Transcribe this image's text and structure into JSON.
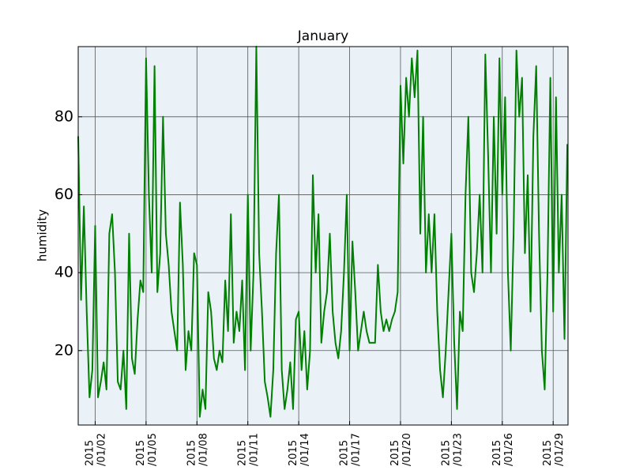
{
  "chart_data": {
    "type": "line",
    "title": "January",
    "ylabel": "humidity",
    "color": "#008000",
    "background": "#eaf2f8",
    "grid": true,
    "x": [
      "2015-01-01 00:00",
      "2015-01-01 04:00",
      "2015-01-01 08:00",
      "2015-01-01 12:00",
      "2015-01-01 16:00",
      "2015-01-01 20:00",
      "2015-01-02 00:00",
      "2015-01-02 04:00",
      "2015-01-02 08:00",
      "2015-01-02 12:00",
      "2015-01-02 16:00",
      "2015-01-02 20:00",
      "2015-01-03 00:00",
      "2015-01-03 04:00",
      "2015-01-03 08:00",
      "2015-01-03 12:00",
      "2015-01-03 16:00",
      "2015-01-03 20:00",
      "2015-01-04 00:00",
      "2015-01-04 04:00",
      "2015-01-04 08:00",
      "2015-01-04 12:00",
      "2015-01-04 16:00",
      "2015-01-04 20:00",
      "2015-01-05 00:00",
      "2015-01-05 04:00",
      "2015-01-05 08:00",
      "2015-01-05 12:00",
      "2015-01-05 16:00",
      "2015-01-05 20:00",
      "2015-01-06 00:00",
      "2015-01-06 04:00",
      "2015-01-06 08:00",
      "2015-01-06 12:00",
      "2015-01-06 16:00",
      "2015-01-06 20:00",
      "2015-01-07 00:00",
      "2015-01-07 04:00",
      "2015-01-07 08:00",
      "2015-01-07 12:00",
      "2015-01-07 16:00",
      "2015-01-07 20:00",
      "2015-01-08 00:00",
      "2015-01-08 04:00",
      "2015-01-08 08:00",
      "2015-01-08 12:00",
      "2015-01-08 16:00",
      "2015-01-08 20:00",
      "2015-01-09 00:00",
      "2015-01-09 04:00",
      "2015-01-09 08:00",
      "2015-01-09 12:00",
      "2015-01-09 16:00",
      "2015-01-09 20:00",
      "2015-01-10 00:00",
      "2015-01-10 04:00",
      "2015-01-10 08:00",
      "2015-01-10 12:00",
      "2015-01-10 16:00",
      "2015-01-10 20:00",
      "2015-01-11 00:00",
      "2015-01-11 04:00",
      "2015-01-11 08:00",
      "2015-01-11 12:00",
      "2015-01-11 16:00",
      "2015-01-11 20:00",
      "2015-01-12 00:00",
      "2015-01-12 04:00",
      "2015-01-12 08:00",
      "2015-01-12 12:00",
      "2015-01-12 16:00",
      "2015-01-12 20:00",
      "2015-01-13 00:00",
      "2015-01-13 04:00",
      "2015-01-13 08:00",
      "2015-01-13 12:00",
      "2015-01-13 16:00",
      "2015-01-13 20:00",
      "2015-01-14 00:00",
      "2015-01-14 04:00",
      "2015-01-14 08:00",
      "2015-01-14 12:00",
      "2015-01-14 16:00",
      "2015-01-14 20:00",
      "2015-01-15 00:00",
      "2015-01-15 04:00",
      "2015-01-15 08:00",
      "2015-01-15 12:00",
      "2015-01-15 16:00",
      "2015-01-15 20:00",
      "2015-01-16 00:00",
      "2015-01-16 04:00",
      "2015-01-16 08:00",
      "2015-01-16 12:00",
      "2015-01-16 16:00",
      "2015-01-16 20:00",
      "2015-01-17 00:00",
      "2015-01-17 04:00",
      "2015-01-17 08:00",
      "2015-01-17 12:00",
      "2015-01-17 16:00",
      "2015-01-17 20:00",
      "2015-01-18 00:00",
      "2015-01-18 04:00",
      "2015-01-18 08:00",
      "2015-01-18 12:00",
      "2015-01-18 16:00",
      "2015-01-18 20:00",
      "2015-01-19 00:00",
      "2015-01-19 04:00",
      "2015-01-19 08:00",
      "2015-01-19 12:00",
      "2015-01-19 16:00",
      "2015-01-19 20:00",
      "2015-01-20 00:00",
      "2015-01-20 04:00",
      "2015-01-20 08:00",
      "2015-01-20 12:00",
      "2015-01-20 16:00",
      "2015-01-20 20:00",
      "2015-01-21 00:00",
      "2015-01-21 04:00",
      "2015-01-21 08:00",
      "2015-01-21 12:00",
      "2015-01-21 16:00",
      "2015-01-21 20:00",
      "2015-01-22 00:00",
      "2015-01-22 04:00",
      "2015-01-22 08:00",
      "2015-01-22 12:00",
      "2015-01-22 16:00",
      "2015-01-22 20:00",
      "2015-01-23 00:00",
      "2015-01-23 04:00",
      "2015-01-23 08:00",
      "2015-01-23 12:00",
      "2015-01-23 16:00",
      "2015-01-23 20:00",
      "2015-01-24 00:00",
      "2015-01-24 04:00",
      "2015-01-24 08:00",
      "2015-01-24 12:00",
      "2015-01-24 16:00",
      "2015-01-24 20:00",
      "2015-01-25 00:00",
      "2015-01-25 04:00",
      "2015-01-25 08:00",
      "2015-01-25 12:00",
      "2015-01-25 16:00",
      "2015-01-25 20:00",
      "2015-01-26 00:00",
      "2015-01-26 04:00",
      "2015-01-26 08:00",
      "2015-01-26 12:00",
      "2015-01-26 16:00",
      "2015-01-26 20:00",
      "2015-01-27 00:00",
      "2015-01-27 04:00",
      "2015-01-27 08:00",
      "2015-01-27 12:00",
      "2015-01-27 16:00",
      "2015-01-27 20:00",
      "2015-01-28 00:00",
      "2015-01-28 04:00",
      "2015-01-28 08:00",
      "2015-01-28 12:00",
      "2015-01-28 16:00",
      "2015-01-28 20:00",
      "2015-01-29 00:00",
      "2015-01-29 04:00",
      "2015-01-29 08:00",
      "2015-01-29 12:00",
      "2015-01-29 16:00",
      "2015-01-29 20:00"
    ],
    "values": [
      75,
      33,
      57,
      30,
      8,
      15,
      52,
      8,
      12,
      17,
      10,
      50,
      55,
      40,
      12,
      10,
      20,
      5,
      50,
      18,
      14,
      28,
      38,
      35,
      95,
      60,
      40,
      93,
      35,
      45,
      80,
      50,
      42,
      30,
      25,
      20,
      58,
      42,
      15,
      25,
      20,
      45,
      42,
      3,
      10,
      5,
      35,
      30,
      18,
      15,
      20,
      17,
      38,
      25,
      55,
      22,
      30,
      25,
      38,
      15,
      60,
      20,
      40,
      98,
      45,
      30,
      12,
      8,
      3,
      15,
      45,
      60,
      15,
      5,
      10,
      17,
      5,
      28,
      30,
      15,
      25,
      10,
      20,
      65,
      40,
      55,
      22,
      30,
      35,
      50,
      30,
      22,
      18,
      25,
      40,
      60,
      20,
      48,
      35,
      20,
      25,
      30,
      25,
      22,
      22,
      22,
      42,
      30,
      25,
      28,
      25,
      28,
      30,
      35,
      88,
      68,
      90,
      80,
      95,
      85,
      97,
      50,
      80,
      40,
      55,
      40,
      55,
      30,
      15,
      8,
      20,
      35,
      50,
      22,
      5,
      30,
      25,
      60,
      80,
      40,
      35,
      45,
      60,
      40,
      96,
      70,
      40,
      80,
      50,
      95,
      60,
      85,
      40,
      20,
      50,
      97,
      80,
      90,
      45,
      65,
      30,
      75,
      93,
      50,
      20,
      10,
      40,
      90,
      30,
      85,
      40,
      60,
      23,
      73
    ],
    "xlim": [
      "2015-01-01 00:00",
      "2015-01-29 21:00"
    ],
    "xticks": [
      {
        "value": "2015-01-02 00:00",
        "label": "2015/01/02"
      },
      {
        "value": "2015-01-05 00:00",
        "label": "2015/01/05"
      },
      {
        "value": "2015-01-08 00:00",
        "label": "2015/01/08"
      },
      {
        "value": "2015-01-11 00:00",
        "label": "2015/01/11"
      },
      {
        "value": "2015-01-14 00:00",
        "label": "2015/01/14"
      },
      {
        "value": "2015-01-17 00:00",
        "label": "2015/01/17"
      },
      {
        "value": "2015-01-20 00:00",
        "label": "2015/01/20"
      },
      {
        "value": "2015-01-23 00:00",
        "label": "2015/01/23"
      },
      {
        "value": "2015-01-26 00:00",
        "label": "2015/01/26"
      },
      {
        "value": "2015-01-29 00:00",
        "label": "2015/01/29"
      }
    ],
    "ylim": [
      0.9,
      98
    ],
    "yticks": [
      20,
      40,
      60,
      80
    ]
  }
}
